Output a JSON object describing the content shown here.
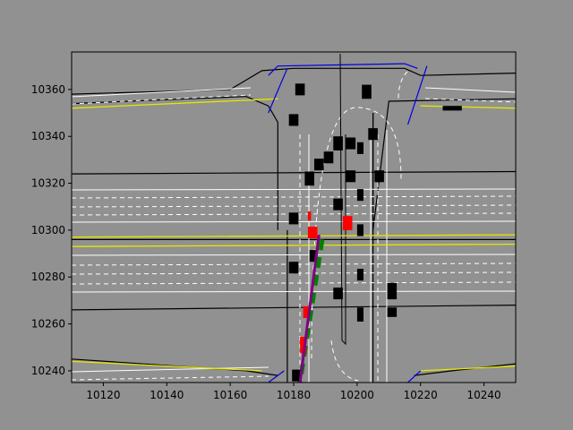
{
  "chart_data": {
    "type": "scatter",
    "title": "",
    "xlabel": "",
    "ylabel": "",
    "xlim": [
      10110,
      10250
    ],
    "ylim": [
      10235,
      10376
    ],
    "grid": false,
    "x_ticks": [
      10120,
      10140,
      10160,
      10180,
      10200,
      10220,
      10240
    ],
    "y_ticks": [
      10240,
      10260,
      10280,
      10300,
      10320,
      10340,
      10360
    ],
    "colors": {
      "figure_bg": "#909190",
      "road_edge": "#000000",
      "lane_marking": "#ffffff",
      "centerline": "#e6e600",
      "crosswalk": "#0000dd",
      "other_agents": "#000000",
      "highlighted_agents": "#ff0000",
      "planned_path": "#008000",
      "trajectory": "#800080"
    },
    "road_boundaries": [
      {
        "x": [
          10110,
          10160,
          10165,
          10170,
          10180,
          10200,
          10215,
          10220,
          10250
        ],
        "y": [
          10358,
          10360,
          10364,
          10368,
          10369,
          10369,
          10369,
          10366,
          10367
        ]
      },
      {
        "x": [
          10110,
          10165,
          10172,
          10175
        ],
        "y": [
          10354,
          10357,
          10353,
          10346
        ]
      },
      {
        "x": [
          10175,
          10175
        ],
        "y": [
          10346,
          10300
        ]
      },
      {
        "x": [
          10110,
          10250
        ],
        "y": [
          10324,
          10325
        ]
      },
      {
        "x": [
          10110,
          10250
        ],
        "y": [
          10296,
          10296
        ]
      },
      {
        "x": [
          10110,
          10250
        ],
        "y": [
          10266,
          10268
        ]
      },
      {
        "x": [
          10178,
          10178
        ],
        "y": [
          10300,
          10235
        ]
      },
      {
        "x": [
          10205,
          10205,
          10210,
          10250
        ],
        "y": [
          10350,
          10300,
          10355,
          10356
        ]
      },
      {
        "x": [
          10205,
          10205
        ],
        "y": [
          10350,
          10235
        ]
      },
      {
        "x": [
          10110,
          10165,
          10175
        ],
        "y": [
          10245,
          10240,
          10238
        ]
      },
      {
        "x": [
          10218,
          10230,
          10250
        ],
        "y": [
          10238,
          10240,
          10243
        ]
      }
    ],
    "centerlines": [
      {
        "x": [
          10110,
          10175
        ],
        "y": [
          10352,
          10356
        ]
      },
      {
        "x": [
          10110,
          10250
        ],
        "y": [
          10297,
          10298
        ]
      },
      {
        "x": [
          10110,
          10250
        ],
        "y": [
          10293,
          10294
        ]
      },
      {
        "x": [
          10110,
          10170
        ],
        "y": [
          10244,
          10240
        ]
      },
      {
        "x": [
          10220,
          10250
        ],
        "y": [
          10240,
          10242
        ]
      },
      {
        "x": [
          10220,
          10250
        ],
        "y": [
          10353,
          10352
        ]
      }
    ],
    "crosswalks": [
      {
        "x": [
          10172,
          10175,
          10215,
          10219
        ],
        "y": [
          10366,
          10370,
          10371,
          10369
        ]
      },
      {
        "x": [
          10172,
          10178
        ],
        "y": [
          10350,
          10369
        ]
      },
      {
        "x": [
          10216,
          10222
        ],
        "y": [
          10345,
          10370
        ]
      },
      {
        "x": [
          10172,
          10177
        ],
        "y": [
          10235,
          10240
        ]
      },
      {
        "x": [
          10216,
          10220
        ],
        "y": [
          10235,
          10240
        ]
      }
    ],
    "agents": [
      {
        "x": 10182,
        "y": 10360,
        "w": 3,
        "h": 5,
        "color": "#000000"
      },
      {
        "x": 10203,
        "y": 10359,
        "w": 3,
        "h": 6,
        "color": "#000000"
      },
      {
        "x": 10180,
        "y": 10347,
        "w": 3,
        "h": 5,
        "color": "#000000"
      },
      {
        "x": 10230,
        "y": 10352,
        "w": 6,
        "h": 2,
        "color": "#000000"
      },
      {
        "x": 10185,
        "y": 10322,
        "w": 3,
        "h": 6,
        "color": "#000000"
      },
      {
        "x": 10188,
        "y": 10328,
        "w": 3,
        "h": 5,
        "color": "#000000"
      },
      {
        "x": 10191,
        "y": 10331,
        "w": 3,
        "h": 5,
        "color": "#000000"
      },
      {
        "x": 10194,
        "y": 10337,
        "w": 3,
        "h": 6,
        "color": "#000000"
      },
      {
        "x": 10198,
        "y": 10337,
        "w": 3,
        "h": 5,
        "color": "#000000"
      },
      {
        "x": 10201,
        "y": 10335,
        "w": 2,
        "h": 5,
        "color": "#000000"
      },
      {
        "x": 10205,
        "y": 10341,
        "w": 3,
        "h": 5,
        "color": "#000000"
      },
      {
        "x": 10198,
        "y": 10323,
        "w": 3,
        "h": 5,
        "color": "#000000"
      },
      {
        "x": 10207,
        "y": 10323,
        "w": 3,
        "h": 5,
        "color": "#000000"
      },
      {
        "x": 10194,
        "y": 10311,
        "w": 3,
        "h": 5,
        "color": "#000000"
      },
      {
        "x": 10201,
        "y": 10315,
        "w": 2,
        "h": 5,
        "color": "#000000"
      },
      {
        "x": 10180,
        "y": 10305,
        "w": 3,
        "h": 5,
        "color": "#000000"
      },
      {
        "x": 10197,
        "y": 10303,
        "w": 3,
        "h": 6,
        "color": "#ff0000"
      },
      {
        "x": 10185,
        "y": 10306,
        "w": 1,
        "h": 4,
        "color": "#ff0000"
      },
      {
        "x": 10201,
        "y": 10300,
        "w": 2,
        "h": 5,
        "color": "#000000"
      },
      {
        "x": 10186,
        "y": 10299,
        "w": 3,
        "h": 5,
        "color": "#ff0000"
      },
      {
        "x": 10186,
        "y": 10289,
        "w": 2,
        "h": 5,
        "color": "#000000"
      },
      {
        "x": 10180,
        "y": 10284,
        "w": 3,
        "h": 5,
        "color": "#000000"
      },
      {
        "x": 10201,
        "y": 10281,
        "w": 2,
        "h": 5,
        "color": "#000000"
      },
      {
        "x": 10194,
        "y": 10273,
        "w": 3,
        "h": 5,
        "color": "#000000"
      },
      {
        "x": 10211,
        "y": 10274,
        "w": 3,
        "h": 7,
        "color": "#000000"
      },
      {
        "x": 10211,
        "y": 10265,
        "w": 3,
        "h": 4,
        "color": "#000000"
      },
      {
        "x": 10201,
        "y": 10264,
        "w": 2,
        "h": 6,
        "color": "#000000"
      },
      {
        "x": 10184,
        "y": 10265,
        "w": 2,
        "h": 5,
        "color": "#ff0000"
      },
      {
        "x": 10183,
        "y": 10251,
        "w": 2,
        "h": 7,
        "color": "#ff0000"
      },
      {
        "x": 10181,
        "y": 10238,
        "w": 3,
        "h": 5,
        "color": "#000000"
      }
    ],
    "planned_path": {
      "x": [
        10189,
        10182
      ],
      "y": [
        10296,
        10235
      ],
      "color": "#008000"
    },
    "trajectory": {
      "x": [
        10188,
        10182
      ],
      "y": [
        10298,
        10235
      ],
      "color": "#800080"
    }
  }
}
